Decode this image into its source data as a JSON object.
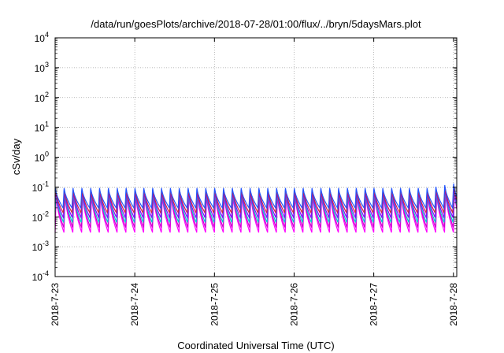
{
  "chart_data": {
    "type": "line",
    "title": "/data/run/goesPlots/archive/2018-07-28/01:00/flux/../bryn/5daysMars.plot",
    "xlabel": "Coordinated Universal Time (UTC)",
    "ylabel": "cSv/day",
    "yscale": "log",
    "ylim": [
      0.0001,
      10000
    ],
    "yticks": [
      {
        "base": "10",
        "exp": "-4"
      },
      {
        "base": "10",
        "exp": "-3"
      },
      {
        "base": "10",
        "exp": "-2"
      },
      {
        "base": "10",
        "exp": "-1"
      },
      {
        "base": "10",
        "exp": "0"
      },
      {
        "base": "10",
        "exp": "1"
      },
      {
        "base": "10",
        "exp": "2"
      },
      {
        "base": "10",
        "exp": "3"
      },
      {
        "base": "10",
        "exp": "4"
      }
    ],
    "xlim": [
      "2018-07-23T00:00",
      "2018-07-28T01:00"
    ],
    "xticks": [
      "2018-7-23",
      "2018-7-24",
      "2018-7-25",
      "2018-7-26",
      "2018-7-27",
      "2018-7-28"
    ],
    "grid": true,
    "legend": "none",
    "pattern": {
      "cycles_per_day": 9,
      "series_count": 6,
      "peak_value_min": 0.06,
      "peak_value_max": 0.1,
      "trough_value_min": 0.003,
      "trough_value_max": 0.02,
      "late_peak_value": 0.15
    },
    "colors": [
      "#ff00ff",
      "#cc00cc",
      "#00cccc",
      "#8800ff",
      "#cc2244",
      "#2255ff"
    ]
  }
}
